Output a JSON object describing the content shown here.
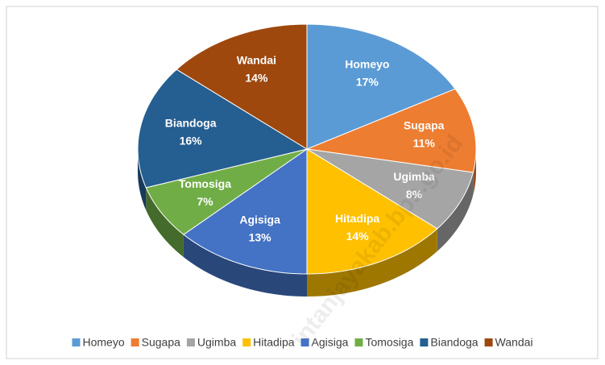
{
  "chart_data": {
    "type": "pie",
    "categories": [
      "Homeyo",
      "Sugapa",
      "Ugimba",
      "Hitadipa",
      "Agisiga",
      "Tomosiga",
      "Biandoga",
      "Wandai"
    ],
    "values": [
      17,
      11,
      8,
      14,
      13,
      7,
      16,
      14
    ],
    "value_labels": [
      "17%",
      "11%",
      "8%",
      "14%",
      "13%",
      "7%",
      "16%",
      "14%"
    ],
    "colors": [
      "#5b9bd5",
      "#ed7d31",
      "#a5a5a5",
      "#ffc000",
      "#4472c4",
      "#70ad47",
      "#255e91",
      "#9e480e"
    ],
    "legend": "bottom",
    "watermark": "intanjayakab.bps.go.id"
  }
}
